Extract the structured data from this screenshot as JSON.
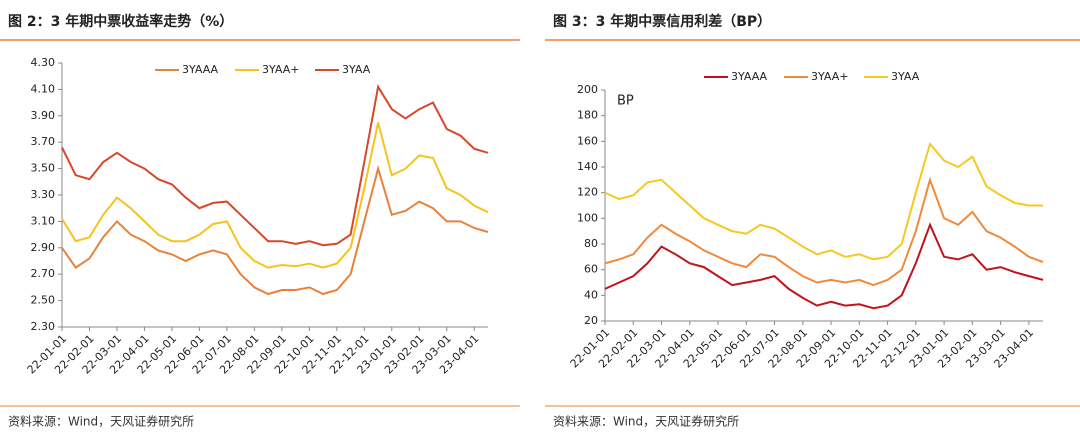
{
  "chart_data": [
    {
      "type": "line",
      "title": "图 2：3 年期中票收益率走势（%）",
      "source": "资料来源：Wind，天风证券研究所",
      "legend": "top",
      "categories": [
        "22-01-01",
        null,
        "22-02-01",
        null,
        "22-03-01",
        null,
        "22-04-01",
        null,
        "22-05-01",
        null,
        "22-06-01",
        null,
        "22-07-01",
        null,
        "22-08-01",
        null,
        "22-09-01",
        null,
        "22-10-01",
        null,
        "22-11-01",
        null,
        "22-12-01",
        null,
        "23-01-01",
        null,
        "23-02-01",
        null,
        "23-03-01",
        null,
        "23-04-01",
        null
      ],
      "ylim": [
        2.3,
        4.3
      ],
      "yticks": [
        {
          "value": 2.3,
          "label": "2.30"
        },
        {
          "value": 2.5,
          "label": "2.50"
        },
        {
          "value": 2.7,
          "label": "2.70"
        },
        {
          "value": 2.9,
          "label": "2.90"
        },
        {
          "value": 3.1,
          "label": "3.10"
        },
        {
          "value": 3.3,
          "label": "3.30"
        },
        {
          "value": 3.5,
          "label": "3.50"
        },
        {
          "value": 3.7,
          "label": "3.70"
        },
        {
          "value": 3.9,
          "label": "3.90"
        },
        {
          "value": 4.1,
          "label": "4.10"
        },
        {
          "value": 4.3,
          "label": "4.30"
        }
      ],
      "series": [
        {
          "name": "3YAAA",
          "color": "#e8823a",
          "values": [
            2.9,
            2.75,
            2.82,
            2.98,
            3.1,
            3.0,
            2.95,
            2.88,
            2.85,
            2.8,
            2.85,
            2.88,
            2.85,
            2.7,
            2.6,
            2.55,
            2.58,
            2.58,
            2.6,
            2.55,
            2.58,
            2.7,
            3.1,
            3.5,
            3.15,
            3.18,
            3.25,
            3.2,
            3.1,
            3.1,
            3.05,
            3.02
          ]
        },
        {
          "name": "3YAA+",
          "color": "#f5c31c",
          "values": [
            3.12,
            2.95,
            2.98,
            3.15,
            3.28,
            3.2,
            3.1,
            3.0,
            2.95,
            2.95,
            3.0,
            3.08,
            3.1,
            2.9,
            2.8,
            2.75,
            2.77,
            2.76,
            2.78,
            2.75,
            2.78,
            2.9,
            3.35,
            3.85,
            3.45,
            3.5,
            3.6,
            3.58,
            3.35,
            3.3,
            3.22,
            3.17
          ]
        },
        {
          "name": "3YAA",
          "color": "#d9472b",
          "values": [
            3.66,
            3.45,
            3.42,
            3.55,
            3.62,
            3.55,
            3.5,
            3.42,
            3.38,
            3.28,
            3.2,
            3.24,
            3.25,
            3.15,
            3.05,
            2.95,
            2.95,
            2.93,
            2.95,
            2.92,
            2.93,
            3.0,
            3.55,
            4.12,
            3.95,
            3.88,
            3.95,
            4.0,
            3.8,
            3.75,
            3.65,
            3.62
          ]
        }
      ]
    },
    {
      "type": "line",
      "title": "图 3：3 年期中票信用利差（BP）",
      "source": "资料来源：Wind，天风证券研究所",
      "legend": "top",
      "annotation": "BP",
      "categories": [
        "22-01-01",
        null,
        "22-02-01",
        null,
        "22-03-01",
        null,
        "22-04-01",
        null,
        "22-05-01",
        null,
        "22-06-01",
        null,
        "22-07-01",
        null,
        "22-08-01",
        null,
        "22-09-01",
        null,
        "22-10-01",
        null,
        "22-11-01",
        null,
        "22-12-01",
        null,
        "23-01-01",
        null,
        "23-02-01",
        null,
        "23-03-01",
        null,
        "23-04-01",
        null
      ],
      "ylim": [
        20,
        200
      ],
      "yticks": [
        20,
        40,
        60,
        80,
        100,
        120,
        140,
        160,
        180,
        200
      ],
      "series": [
        {
          "name": "3YAAA",
          "color": "#c0141b",
          "values": [
            45,
            50,
            55,
            65,
            78,
            72,
            65,
            62,
            55,
            48,
            50,
            52,
            55,
            45,
            38,
            32,
            35,
            32,
            33,
            30,
            32,
            40,
            65,
            95,
            70,
            68,
            72,
            60,
            62,
            58,
            55,
            52
          ]
        },
        {
          "name": "3YAA+",
          "color": "#f08a3c",
          "values": [
            65,
            68,
            72,
            85,
            95,
            88,
            82,
            75,
            70,
            65,
            62,
            72,
            70,
            62,
            55,
            50,
            52,
            50,
            52,
            48,
            52,
            60,
            90,
            130,
            100,
            95,
            105,
            90,
            85,
            78,
            70,
            66
          ]
        },
        {
          "name": "3YAA",
          "color": "#f7c81e",
          "values": [
            120,
            115,
            118,
            128,
            130,
            120,
            110,
            100,
            95,
            90,
            88,
            95,
            92,
            85,
            78,
            72,
            75,
            70,
            72,
            68,
            70,
            80,
            120,
            158,
            145,
            140,
            148,
            125,
            118,
            112,
            110,
            110
          ]
        }
      ]
    }
  ]
}
